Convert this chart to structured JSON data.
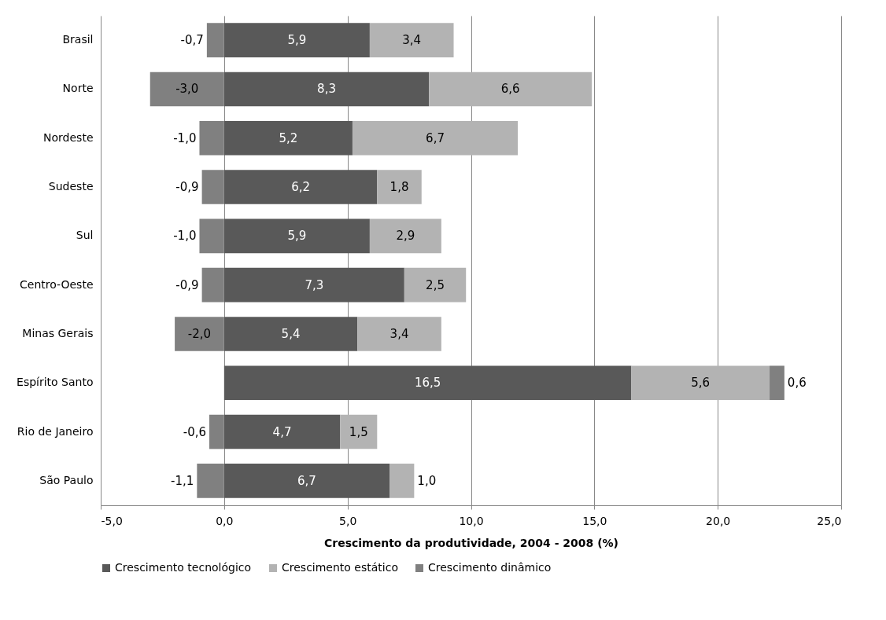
{
  "chart_data": {
    "type": "bar",
    "orientation": "horizontal",
    "stacked": true,
    "xlabel": "Crescimento da produtividade, 2004 - 2008 (%)",
    "categories": [
      "Brasil",
      "Norte",
      "Nordeste",
      "Sudeste",
      "Sul",
      "Centro-Oeste",
      "Minas Gerais",
      "Espírito Santo",
      "Rio de Janeiro",
      "São Paulo"
    ],
    "series": [
      {
        "name": "Crescimento tecnológico",
        "color": "#595959",
        "values": [
          5.9,
          8.3,
          5.2,
          6.2,
          5.9,
          7.3,
          5.4,
          16.5,
          4.7,
          6.7
        ],
        "value_labels": [
          "5,9",
          "8,3",
          "5,2",
          "6,2",
          "5,9",
          "7,3",
          "5,4",
          "16,5",
          "4,7",
          "6,7"
        ]
      },
      {
        "name": "Crescimento estático",
        "color": "#b3b3b3",
        "values": [
          3.4,
          6.6,
          6.7,
          1.8,
          2.9,
          2.5,
          3.4,
          5.6,
          1.5,
          1.0
        ],
        "value_labels": [
          "3,4",
          "6,6",
          "6,7",
          "1,8",
          "2,9",
          "2,5",
          "3,4",
          "5,6",
          "1,5",
          "1,0"
        ]
      },
      {
        "name": "Crescimento dinâmico",
        "color": "#808080",
        "values": [
          -0.7,
          -3.0,
          -1.0,
          -0.9,
          -1.0,
          -0.9,
          -2.0,
          0.6,
          -0.6,
          -1.1
        ],
        "value_labels": [
          "-0,7",
          "-3,0",
          "-1,0",
          "-0,9",
          "-1,0",
          "-0,9",
          "-2,0",
          "0,6",
          "-0,6",
          "-1,1"
        ]
      }
    ],
    "xlim": [
      -5,
      25
    ],
    "xticks": [
      {
        "value": -5,
        "label": "-5,0"
      },
      {
        "value": 0,
        "label": "0,0"
      },
      {
        "value": 5,
        "label": "5,0"
      },
      {
        "value": 10,
        "label": "10,0"
      },
      {
        "value": 15,
        "label": "15,0"
      },
      {
        "value": 20,
        "label": "20,0"
      },
      {
        "value": 25,
        "label": "25,0"
      }
    ],
    "grid": "x",
    "legend": "bottom"
  }
}
